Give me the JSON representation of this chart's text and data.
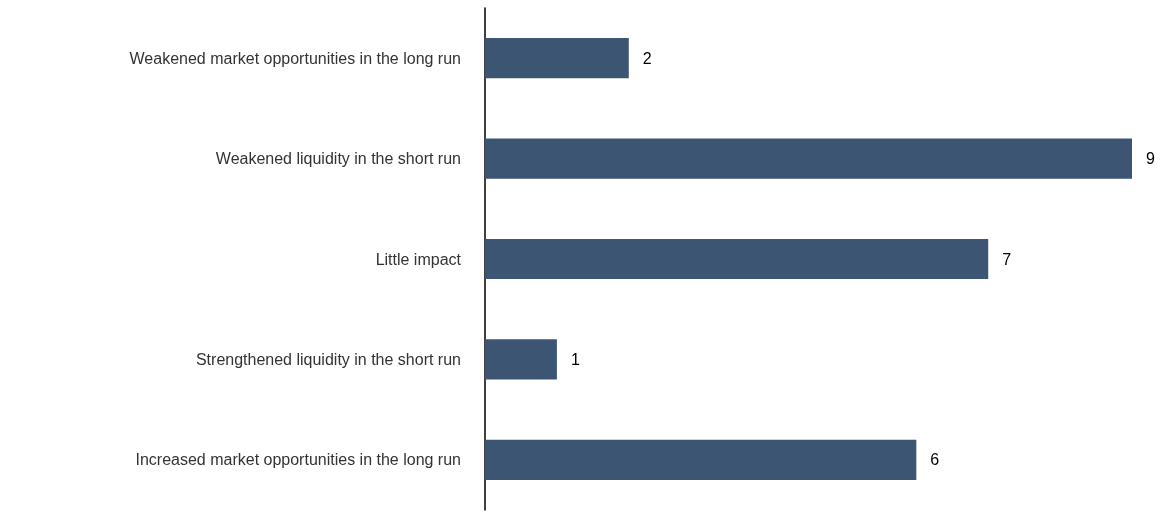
{
  "chart_data": {
    "type": "bar",
    "orientation": "horizontal",
    "categories": [
      "Weakened market opportunities in the long run",
      "Weakened liquidity in the short run",
      "Little impact",
      "Strengthened liquidity in the short run",
      "Increased market opportunities in the long run"
    ],
    "values": [
      2,
      9,
      7,
      1,
      6
    ],
    "color": "#3b5573",
    "data_labels": true
  }
}
